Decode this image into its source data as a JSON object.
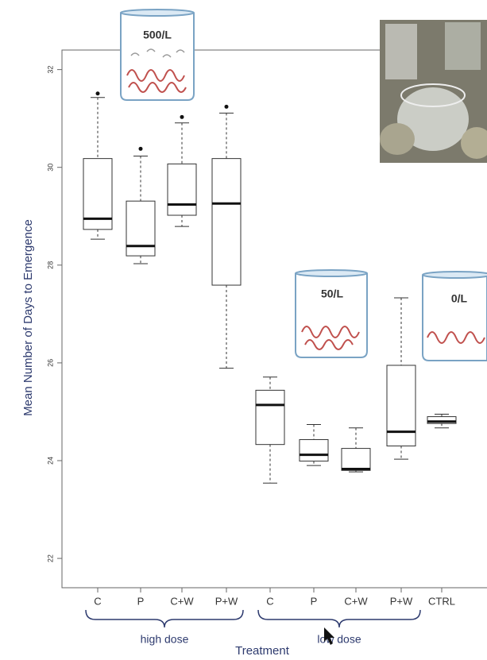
{
  "chart_data": {
    "type": "box",
    "ylabel": "Mean Number of Days to Emergence",
    "xlabel": "Treatment",
    "categories": [
      "C",
      "P",
      "C+W",
      "P+W",
      "C",
      "P",
      "C+W",
      "P+W",
      "CTRL"
    ],
    "group_labels": [
      "high dose",
      "low dose"
    ],
    "annotations": [
      "500/L",
      "50/L",
      "0/L"
    ],
    "boxes": [
      {
        "whisker_low": 28.53,
        "q1": 28.73,
        "median": 28.95,
        "q3": 30.18,
        "whisker_high": 31.43,
        "outliers": [
          31.51
        ]
      },
      {
        "whisker_low": 28.03,
        "q1": 28.19,
        "median": 28.39,
        "q3": 29.31,
        "whisker_high": 30.23,
        "outliers": [
          30.38
        ]
      },
      {
        "whisker_low": 28.79,
        "q1": 29.02,
        "median": 29.24,
        "q3": 30.07,
        "whisker_high": 30.91,
        "outliers": [
          31.03
        ]
      },
      {
        "whisker_low": 25.89,
        "q1": 27.59,
        "median": 29.26,
        "q3": 30.18,
        "whisker_high": 31.11,
        "outliers": [
          31.24
        ]
      },
      {
        "whisker_low": 23.54,
        "q1": 24.33,
        "median": 25.14,
        "q3": 25.44,
        "whisker_high": 25.71,
        "outliers": []
      },
      {
        "whisker_low": 23.9,
        "q1": 23.99,
        "median": 24.12,
        "q3": 24.43,
        "whisker_high": 24.74,
        "outliers": []
      },
      {
        "whisker_low": 23.77,
        "q1": 23.8,
        "median": 23.83,
        "q3": 24.25,
        "whisker_high": 24.67,
        "outliers": []
      },
      {
        "whisker_low": 24.03,
        "q1": 24.3,
        "median": 24.59,
        "q3": 25.95,
        "whisker_high": 27.33,
        "outliers": []
      },
      {
        "whisker_low": 24.67,
        "q1": 24.76,
        "median": 24.8,
        "q3": 24.9,
        "whisker_high": 24.95,
        "outliers": []
      }
    ],
    "ylim": [
      21.4,
      32.4
    ],
    "yticks": [
      22,
      24,
      26,
      28,
      30,
      32
    ],
    "color": "#333333"
  }
}
